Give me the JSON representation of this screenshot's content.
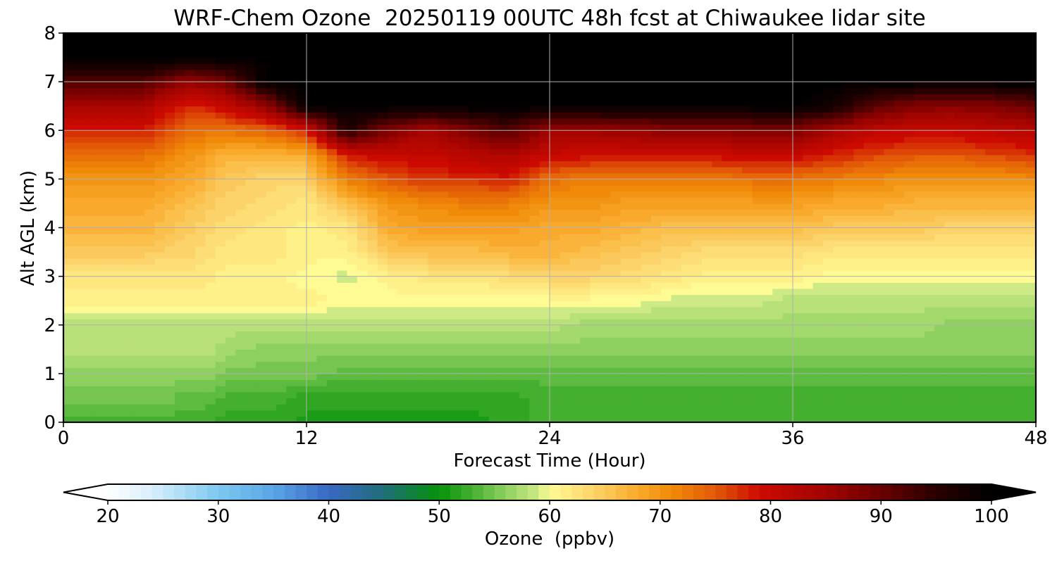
{
  "chart_data": {
    "type": "heatmap",
    "title": "WRF-Chem Ozone  20250119 00UTC 48h fcst at Chiwaukee lidar site",
    "xlabel": "Forecast Time (Hour)",
    "ylabel": "Alt AGL (km)",
    "xlim": [
      0,
      48
    ],
    "ylim": [
      0,
      8
    ],
    "xticks": [
      0,
      12,
      24,
      36,
      48
    ],
    "yticks": [
      0,
      1,
      2,
      3,
      4,
      5,
      6,
      7,
      8
    ],
    "grid": true,
    "colorbar": {
      "label": "Ozone  (ppbv)",
      "range": [
        20,
        100
      ],
      "ticks": [
        20,
        30,
        40,
        50,
        60,
        70,
        80,
        90,
        100
      ],
      "extend": "both",
      "colors": [
        {
          "v": 20,
          "c": "#ffffff"
        },
        {
          "v": 24,
          "c": "#d8eefa"
        },
        {
          "v": 30,
          "c": "#7cc8f0"
        },
        {
          "v": 35,
          "c": "#5aa6e6"
        },
        {
          "v": 40,
          "c": "#3868c4"
        },
        {
          "v": 45,
          "c": "#1f6e78"
        },
        {
          "v": 50,
          "c": "#05920a"
        },
        {
          "v": 53,
          "c": "#45b030"
        },
        {
          "v": 56,
          "c": "#8ed060"
        },
        {
          "v": 59,
          "c": "#ceea86"
        },
        {
          "v": 60,
          "c": "#fffb94"
        },
        {
          "v": 64,
          "c": "#fcd36a"
        },
        {
          "v": 68,
          "c": "#f9aa2c"
        },
        {
          "v": 71,
          "c": "#f08a08"
        },
        {
          "v": 75,
          "c": "#e25a08"
        },
        {
          "v": 79,
          "c": "#cc0a00"
        },
        {
          "v": 85,
          "c": "#a00400"
        },
        {
          "v": 90,
          "c": "#6a0000"
        },
        {
          "v": 95,
          "c": "#2a0000"
        },
        {
          "v": 100,
          "c": "#000000"
        }
      ]
    },
    "x_hours": [
      0,
      2,
      4,
      5,
      6,
      7,
      8,
      10,
      12,
      14,
      16,
      18,
      20,
      22,
      24,
      26,
      28,
      30,
      32,
      34,
      36,
      38,
      40,
      42,
      44,
      46,
      48
    ],
    "y_km": [
      0,
      0.5,
      1,
      1.5,
      2,
      2.5,
      3,
      3.5,
      4,
      4.5,
      5,
      5.5,
      6,
      6.5,
      7,
      7.5,
      8
    ],
    "ozone_ppbv": [
      [
        53,
        53,
        53,
        53,
        53,
        53,
        52,
        52,
        51,
        51,
        51,
        51,
        51,
        52,
        53,
        53,
        53,
        53,
        53,
        53,
        53,
        53,
        53,
        53,
        53,
        53,
        53
      ],
      [
        55,
        55,
        55,
        55,
        54,
        54,
        53,
        53,
        52,
        52,
        52,
        52,
        52,
        52,
        53,
        53,
        53,
        53,
        53,
        53,
        53,
        53,
        53,
        53,
        53,
        53,
        53
      ],
      [
        56,
        56,
        56,
        56,
        56,
        56,
        55,
        55,
        55,
        54,
        54,
        54,
        54,
        54,
        54,
        54,
        54,
        54,
        54,
        54,
        54,
        54,
        54,
        54,
        54,
        54,
        54
      ],
      [
        58,
        58,
        58,
        58,
        58,
        58,
        57,
        56,
        56,
        56,
        56,
        56,
        56,
        56,
        56,
        56,
        56,
        56,
        56,
        56,
        56,
        56,
        56,
        56,
        56,
        56,
        56
      ],
      [
        58,
        58,
        58,
        58,
        58,
        58,
        58,
        58,
        58,
        58,
        58,
        58,
        58,
        58,
        58,
        57,
        57,
        57,
        57,
        57,
        57,
        57,
        57,
        57,
        56,
        56,
        56
      ],
      [
        61,
        61,
        61,
        61,
        61,
        61,
        61,
        61,
        61,
        60,
        60,
        60,
        60,
        60,
        60,
        60,
        60,
        59,
        59,
        59,
        58,
        58,
        58,
        58,
        58,
        58,
        58
      ],
      [
        62,
        62,
        62,
        62,
        62,
        62,
        61,
        61,
        60,
        59,
        61,
        62,
        62,
        63,
        64,
        64,
        63,
        62,
        61,
        61,
        61,
        60,
        60,
        60,
        60,
        60,
        60
      ],
      [
        65,
        65,
        65,
        64,
        64,
        63,
        62,
        62,
        61,
        61,
        65,
        66,
        66,
        67,
        67,
        66,
        65,
        64,
        63,
        63,
        63,
        62,
        62,
        62,
        62,
        62,
        62
      ],
      [
        67,
        67,
        67,
        66,
        65,
        64,
        63,
        62,
        61,
        62,
        68,
        69,
        69,
        69,
        68,
        68,
        67,
        66,
        66,
        66,
        66,
        65,
        65,
        65,
        64,
        64,
        64
      ],
      [
        68,
        68,
        68,
        67,
        66,
        65,
        64,
        63,
        62,
        66,
        70,
        71,
        72,
        72,
        70,
        70,
        69,
        69,
        69,
        69,
        69,
        68,
        68,
        67,
        67,
        67,
        67
      ],
      [
        70,
        70,
        70,
        69,
        68,
        67,
        65,
        64,
        64,
        72,
        75,
        77,
        77,
        78,
        73,
        72,
        72,
        72,
        72,
        73,
        73,
        72,
        71,
        70,
        70,
        70,
        71
      ],
      [
        73,
        73,
        73,
        72,
        70,
        69,
        67,
        67,
        68,
        78,
        80,
        80,
        82,
        83,
        80,
        79,
        79,
        79,
        79,
        80,
        80,
        78,
        76,
        75,
        75,
        76,
        77
      ],
      [
        78,
        78,
        78,
        76,
        74,
        73,
        73,
        74,
        78,
        96,
        88,
        84,
        88,
        92,
        85,
        85,
        86,
        87,
        87,
        88,
        88,
        84,
        81,
        80,
        80,
        81,
        82
      ],
      [
        84,
        84,
        84,
        80,
        78,
        78,
        80,
        86,
        100,
        100,
        100,
        100,
        100,
        100,
        100,
        100,
        100,
        100,
        100,
        100,
        100,
        98,
        91,
        88,
        87,
        88,
        90
      ],
      [
        92,
        92,
        92,
        89,
        86,
        87,
        89,
        100,
        100,
        100,
        100,
        100,
        100,
        100,
        100,
        100,
        100,
        100,
        100,
        100,
        100,
        100,
        100,
        100,
        100,
        100,
        100
      ],
      [
        100,
        100,
        100,
        100,
        100,
        100,
        100,
        100,
        100,
        100,
        100,
        100,
        100,
        100,
        100,
        100,
        100,
        100,
        100,
        100,
        100,
        100,
        100,
        100,
        100,
        100,
        100
      ],
      [
        100,
        100,
        100,
        100,
        100,
        100,
        100,
        100,
        100,
        100,
        100,
        100,
        100,
        100,
        100,
        100,
        100,
        100,
        100,
        100,
        100,
        100,
        100,
        100,
        100,
        100,
        100
      ]
    ]
  }
}
